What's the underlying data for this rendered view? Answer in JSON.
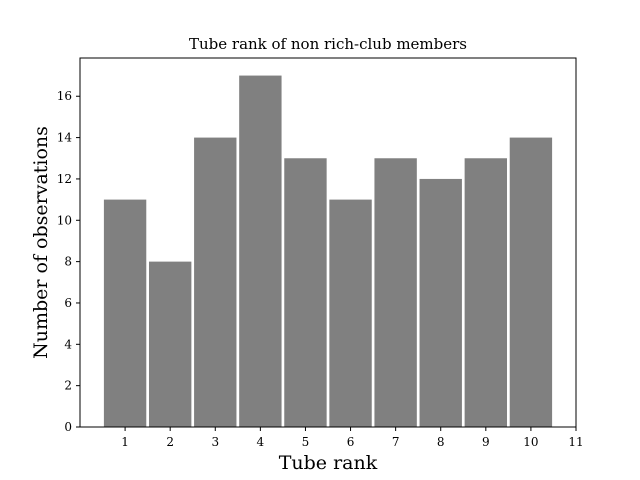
{
  "chart_data": {
    "type": "bar",
    "title": "Tube rank of non rich-club members",
    "xlabel": "Tube rank",
    "ylabel": "Number of observations",
    "categories": [
      "1",
      "2",
      "3",
      "4",
      "5",
      "6",
      "7",
      "8",
      "9",
      "10"
    ],
    "x": [
      1,
      2,
      3,
      4,
      5,
      6,
      7,
      8,
      9,
      10
    ],
    "values": [
      11,
      8,
      14,
      17,
      13,
      11,
      13,
      12,
      13,
      14
    ],
    "xlim": [
      0.0,
      11
    ],
    "ylim": [
      0,
      17.85
    ],
    "xticks": [
      "1",
      "2",
      "3",
      "4",
      "5",
      "6",
      "7",
      "8",
      "9",
      "10",
      "11"
    ],
    "yticks": [
      "0",
      "2",
      "4",
      "6",
      "8",
      "10",
      "12",
      "14",
      "16"
    ],
    "bar_color": "#808080",
    "grid": false,
    "legend": "none"
  }
}
